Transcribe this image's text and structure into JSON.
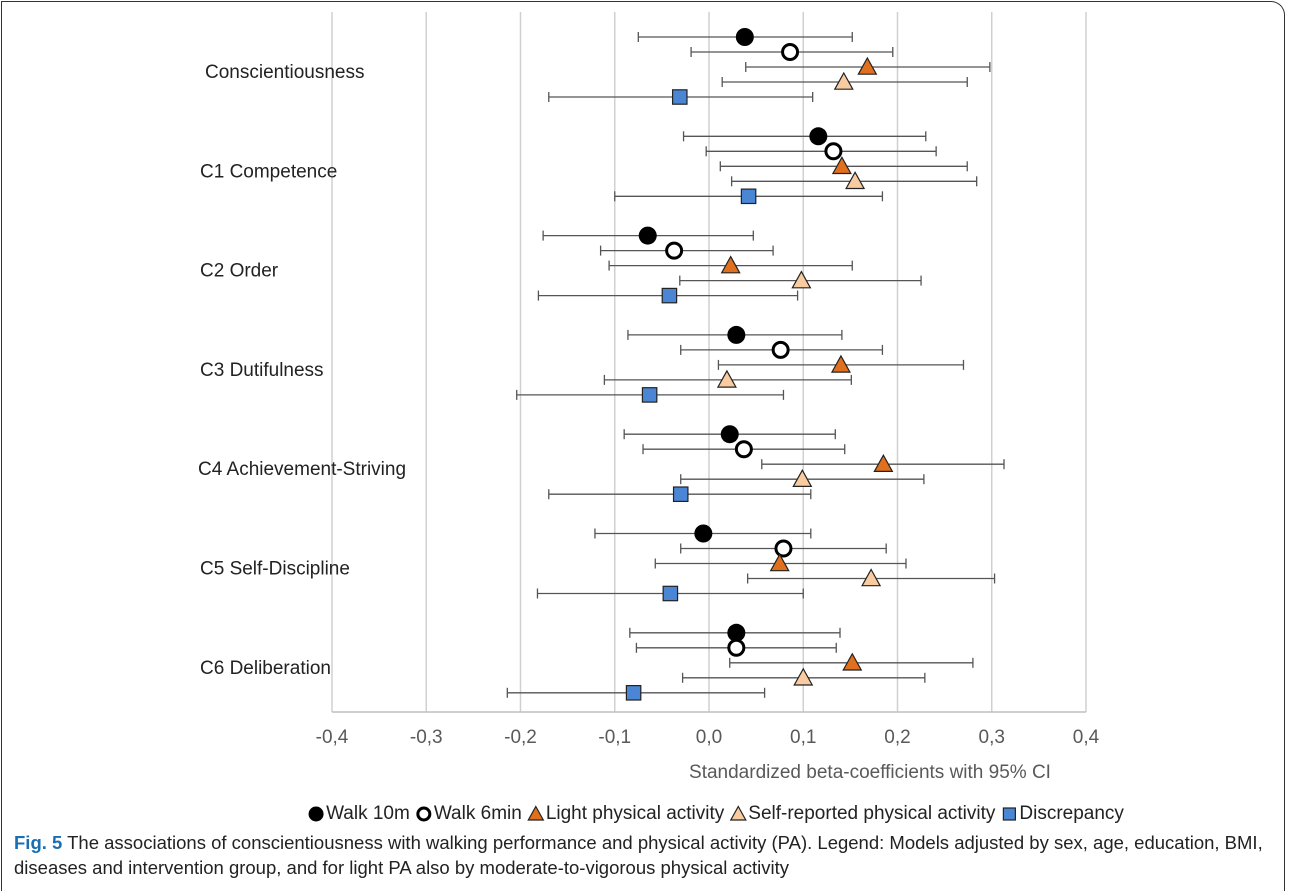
{
  "chart_data": {
    "type": "forest",
    "categories": [
      "Conscientiousness",
      "C1 Competence",
      "C2 Order",
      "C3 Dutifulness",
      "C4 Achievement-Striving",
      "C5 Self-Discipline",
      "C6 Deliberation"
    ],
    "series": [
      {
        "name": "Walk 10m",
        "marker": "circle",
        "color": "#000000",
        "values": [
          0.038,
          0.116,
          -0.065,
          0.029,
          0.022,
          -0.006,
          0.029
        ],
        "lower": [
          -0.075,
          -0.027,
          -0.176,
          -0.086,
          -0.09,
          -0.121,
          -0.084
        ],
        "upper": [
          0.152,
          0.23,
          0.047,
          0.141,
          0.134,
          0.108,
          0.139
        ]
      },
      {
        "name": "Walk 6min",
        "marker": "circle-open",
        "color": "#000000",
        "values": [
          0.086,
          0.132,
          -0.037,
          0.076,
          0.037,
          0.079,
          0.029
        ],
        "lower": [
          -0.019,
          -0.003,
          -0.115,
          -0.03,
          -0.07,
          -0.03,
          -0.077
        ],
        "upper": [
          0.195,
          0.241,
          0.068,
          0.184,
          0.144,
          0.188,
          0.135
        ]
      },
      {
        "name": "Light physical activity",
        "marker": "triangle",
        "color": "#e0701e",
        "values": [
          0.168,
          0.141,
          0.023,
          0.14,
          0.185,
          0.075,
          0.152
        ],
        "lower": [
          0.039,
          0.012,
          -0.106,
          0.01,
          0.056,
          -0.057,
          0.022
        ],
        "upper": [
          0.298,
          0.274,
          0.152,
          0.27,
          0.313,
          0.209,
          0.28
        ]
      },
      {
        "name": "Self-reported physical activity",
        "marker": "triangle",
        "color": "#f8cba0",
        "values": [
          0.143,
          0.155,
          0.098,
          0.019,
          0.099,
          0.172,
          0.1
        ],
        "lower": [
          0.014,
          0.024,
          -0.031,
          -0.111,
          -0.03,
          0.041,
          -0.028
        ],
        "upper": [
          0.274,
          0.284,
          0.225,
          0.151,
          0.228,
          0.303,
          0.229
        ]
      },
      {
        "name": "Discrepancy",
        "marker": "square",
        "color": "#4a86d4",
        "values": [
          -0.031,
          0.042,
          -0.042,
          -0.063,
          -0.03,
          -0.041,
          -0.08
        ],
        "lower": [
          -0.17,
          -0.1,
          -0.181,
          -0.204,
          -0.17,
          -0.182,
          -0.214
        ],
        "upper": [
          0.11,
          0.184,
          0.094,
          0.079,
          0.108,
          0.1,
          0.059
        ]
      }
    ],
    "xlim": [
      -0.4,
      0.4
    ],
    "xticks": [
      {
        "value": -0.4,
        "label": "-0,4"
      },
      {
        "value": -0.3,
        "label": "-0,3"
      },
      {
        "value": -0.2,
        "label": "-0,2"
      },
      {
        "value": -0.1,
        "label": "-0,1"
      },
      {
        "value": 0,
        "label": "0,0"
      },
      {
        "value": 0.1,
        "label": "0,1"
      },
      {
        "value": 0.2,
        "label": "0,2"
      },
      {
        "value": 0.3,
        "label": "0,3"
      },
      {
        "value": 0.4,
        "label": "0,4"
      }
    ],
    "xlabel": "Standardized beta-coefficients with 95% CI",
    "grid": true,
    "figure_label": "Fig. 5",
    "caption": "The associations of conscientiousness with walking performance and physical activity (PA). Legend: Models adjusted by sex, age, education, BMI, diseases and intervention group, and for light PA also by moderate-to-vigorous physical activity"
  }
}
